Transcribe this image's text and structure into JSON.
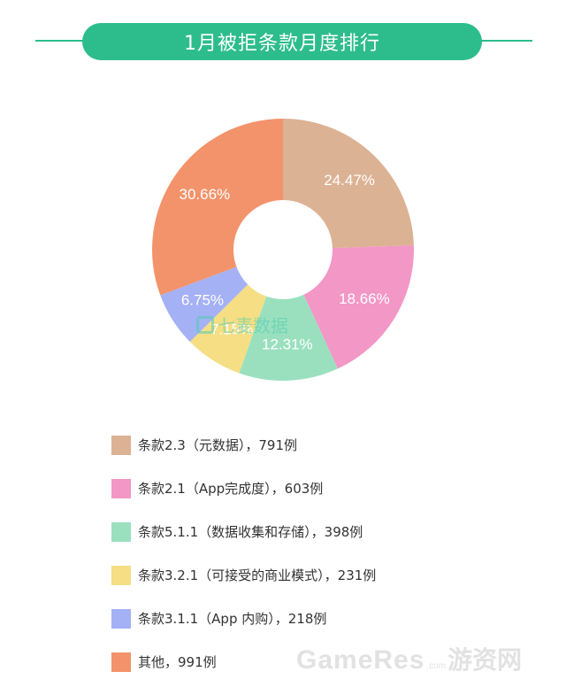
{
  "header": {
    "title": "1月被拒条款月度排行"
  },
  "chart_data": {
    "type": "pie",
    "donut": true,
    "title": "1月被拒条款月度排行",
    "slices": [
      {
        "label": "条款2.3（元数据），791例",
        "value": 24.47,
        "value_label": "24.47%",
        "color": "#dcb294"
      },
      {
        "label": "条款2.1（App完成度），603例",
        "value": 18.66,
        "value_label": "18.66%",
        "color": "#f297c6"
      },
      {
        "label": "条款5.1.1（数据收集和存储），398例",
        "value": 12.31,
        "value_label": "12.31%",
        "color": "#9ae0bf"
      },
      {
        "label": "条款3.2.1（可接受的商业模式），231例",
        "value": 7.15,
        "value_label": "7.15%",
        "color": "#f5de84"
      },
      {
        "label": "条款3.1.1（App 内购），218例",
        "value": 6.75,
        "value_label": "6.75%",
        "color": "#a5b1f5"
      },
      {
        "label": "其他，991例",
        "value": 30.66,
        "value_label": "30.66%",
        "color": "#f3936b"
      }
    ],
    "legend": "bottom"
  },
  "watermarks": {
    "center": "七麦数据",
    "footer_brand": "GameRes",
    "footer_tld": ".com",
    "footer_cn": "游资网"
  }
}
